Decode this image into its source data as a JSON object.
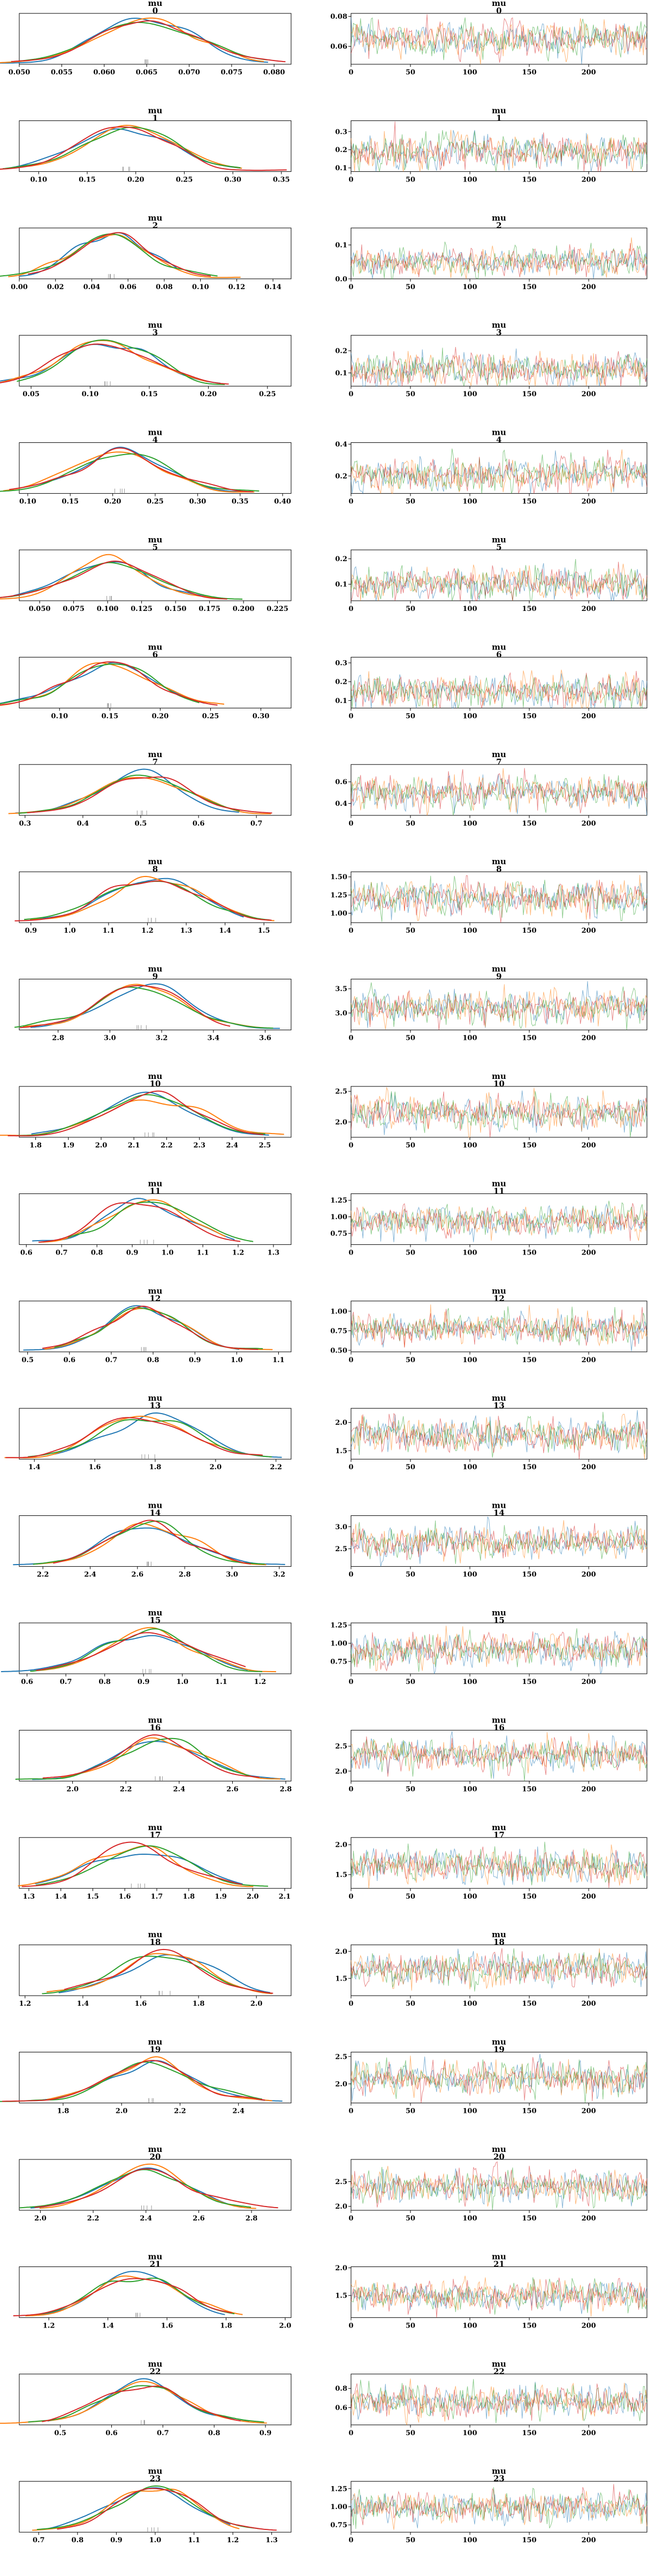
{
  "figure": {
    "type": "trace-plot",
    "chains": 4,
    "colors": [
      "#1f77b4",
      "#ff7f0e",
      "#2ca02c",
      "#d62728"
    ],
    "draws": 250,
    "line_title": "mu"
  },
  "chart_data": [
    {
      "index": "0",
      "title": "mu",
      "label": "0",
      "kde": {
        "xlim": [
          0.05,
          0.082
        ],
        "ticks": [
          "0.050",
          "0.055",
          "0.060",
          "0.065",
          "0.070",
          "0.075",
          "0.080"
        ],
        "mean": 0.065,
        "sd": 0.0055
      },
      "trace": {
        "ylim": [
          0.048,
          0.082
        ],
        "ticks": [
          "0.06",
          "0.08"
        ],
        "mean": 0.065,
        "sd": 0.0055
      }
    },
    {
      "index": "1",
      "title": "mu",
      "label": "1",
      "kde": {
        "xlim": [
          0.08,
          0.36
        ],
        "ticks": [
          "0.10",
          "0.15",
          "0.20",
          "0.25",
          "0.30",
          "0.35"
        ],
        "mean": 0.19,
        "sd": 0.045
      },
      "trace": {
        "ylim": [
          0.08,
          0.36
        ],
        "ticks": [
          "0.1",
          "0.2",
          "0.3"
        ],
        "mean": 0.19,
        "sd": 0.045
      }
    },
    {
      "index": "2",
      "title": "mu",
      "label": "2",
      "kde": {
        "xlim": [
          0.0,
          0.15
        ],
        "ticks": [
          "0.00",
          "0.02",
          "0.04",
          "0.06",
          "0.08",
          "0.10",
          "0.12",
          "0.14"
        ],
        "mean": 0.052,
        "sd": 0.02
      },
      "trace": {
        "ylim": [
          0.0,
          0.15
        ],
        "ticks": [
          "0.0",
          "0.1"
        ],
        "mean": 0.052,
        "sd": 0.02
      }
    },
    {
      "index": "3",
      "title": "mu",
      "label": "3",
      "kde": {
        "xlim": [
          0.04,
          0.27
        ],
        "ticks": [
          "0.05",
          "0.10",
          "0.15",
          "0.20",
          "0.25"
        ],
        "mean": 0.115,
        "sd": 0.035
      },
      "trace": {
        "ylim": [
          0.04,
          0.27
        ],
        "ticks": [
          "0.1",
          "0.2"
        ],
        "mean": 0.115,
        "sd": 0.035
      }
    },
    {
      "index": "4",
      "title": "mu",
      "label": "4",
      "kde": {
        "xlim": [
          0.09,
          0.41
        ],
        "ticks": [
          "0.10",
          "0.15",
          "0.20",
          "0.25",
          "0.30",
          "0.35",
          "0.40"
        ],
        "mean": 0.21,
        "sd": 0.05
      },
      "trace": {
        "ylim": [
          0.09,
          0.41
        ],
        "ticks": [
          "0.2",
          "0.4"
        ],
        "mean": 0.21,
        "sd": 0.05
      }
    },
    {
      "index": "5",
      "title": "mu",
      "label": "5",
      "kde": {
        "xlim": [
          0.035,
          0.235
        ],
        "ticks": [
          "0.050",
          "0.075",
          "0.100",
          "0.125",
          "0.150",
          "0.175",
          "0.200",
          "0.225"
        ],
        "mean": 0.1,
        "sd": 0.03
      },
      "trace": {
        "ylim": [
          0.035,
          0.235
        ],
        "ticks": [
          "0.1",
          "0.2"
        ],
        "mean": 0.1,
        "sd": 0.03
      }
    },
    {
      "index": "6",
      "title": "mu",
      "label": "6",
      "kde": {
        "xlim": [
          0.06,
          0.33
        ],
        "ticks": [
          "0.10",
          "0.15",
          "0.20",
          "0.25",
          "0.30"
        ],
        "mean": 0.15,
        "sd": 0.04
      },
      "trace": {
        "ylim": [
          0.06,
          0.33
        ],
        "ticks": [
          "0.1",
          "0.2",
          "0.3"
        ],
        "mean": 0.15,
        "sd": 0.04
      }
    },
    {
      "index": "7",
      "title": "mu",
      "label": "7",
      "kde": {
        "xlim": [
          0.29,
          0.76
        ],
        "ticks": [
          "0.3",
          "0.4",
          "0.5",
          "0.6",
          "0.7"
        ],
        "mean": 0.5,
        "sd": 0.07
      },
      "trace": {
        "ylim": [
          0.29,
          0.76
        ],
        "ticks": [
          "0.4",
          "0.6"
        ],
        "mean": 0.5,
        "sd": 0.07
      }
    },
    {
      "index": "8",
      "title": "mu",
      "label": "8",
      "kde": {
        "xlim": [
          0.87,
          1.57
        ],
        "ticks": [
          "0.9",
          "1.0",
          "1.1",
          "1.2",
          "1.3",
          "1.4",
          "1.5"
        ],
        "mean": 1.22,
        "sd": 0.11
      },
      "trace": {
        "ylim": [
          0.87,
          1.57
        ],
        "ticks": [
          "1.00",
          "1.25",
          "1.50"
        ],
        "mean": 1.22,
        "sd": 0.11
      }
    },
    {
      "index": "9",
      "title": "mu",
      "label": "9",
      "kde": {
        "xlim": [
          2.65,
          3.7
        ],
        "ticks": [
          "2.8",
          "3.0",
          "3.2",
          "3.4",
          "3.6"
        ],
        "mean": 3.12,
        "sd": 0.16
      },
      "trace": {
        "ylim": [
          2.65,
          3.7
        ],
        "ticks": [
          "3.0",
          "3.5"
        ],
        "mean": 3.12,
        "sd": 0.16
      }
    },
    {
      "index": "10",
      "title": "mu",
      "label": "10",
      "kde": {
        "xlim": [
          1.75,
          2.58
        ],
        "ticks": [
          "1.8",
          "1.9",
          "2.0",
          "2.1",
          "2.2",
          "2.3",
          "2.4",
          "2.5"
        ],
        "mean": 2.15,
        "sd": 0.13
      },
      "trace": {
        "ylim": [
          1.75,
          2.58
        ],
        "ticks": [
          "2.0",
          "2.5"
        ],
        "mean": 2.15,
        "sd": 0.13
      }
    },
    {
      "index": "11",
      "title": "mu",
      "label": "11",
      "kde": {
        "xlim": [
          0.58,
          1.35
        ],
        "ticks": [
          "0.6",
          "0.7",
          "0.8",
          "0.9",
          "1.0",
          "1.1",
          "1.2",
          "1.3"
        ],
        "mean": 0.94,
        "sd": 0.11
      },
      "trace": {
        "ylim": [
          0.58,
          1.35
        ],
        "ticks": [
          "0.75",
          "1.00",
          "1.25"
        ],
        "mean": 0.94,
        "sd": 0.11
      }
    },
    {
      "index": "12",
      "title": "mu",
      "label": "12",
      "kde": {
        "xlim": [
          0.48,
          1.13
        ],
        "ticks": [
          "0.5",
          "0.6",
          "0.7",
          "0.8",
          "0.9",
          "1.0",
          "1.1"
        ],
        "mean": 0.78,
        "sd": 0.09
      },
      "trace": {
        "ylim": [
          0.48,
          1.13
        ],
        "ticks": [
          "0.50",
          "0.75",
          "1.00"
        ],
        "mean": 0.78,
        "sd": 0.09
      }
    },
    {
      "index": "13",
      "title": "mu",
      "label": "13",
      "kde": {
        "xlim": [
          1.35,
          2.25
        ],
        "ticks": [
          "1.4",
          "1.6",
          "1.8",
          "2.0",
          "2.2"
        ],
        "mean": 1.77,
        "sd": 0.14
      },
      "trace": {
        "ylim": [
          1.35,
          2.25
        ],
        "ticks": [
          "1.5",
          "2.0"
        ],
        "mean": 1.77,
        "sd": 0.14
      }
    },
    {
      "index": "14",
      "title": "mu",
      "label": "14",
      "kde": {
        "xlim": [
          2.1,
          3.25
        ],
        "ticks": [
          "2.2",
          "2.4",
          "2.6",
          "2.8",
          "3.0",
          "3.2"
        ],
        "mean": 2.66,
        "sd": 0.17
      },
      "trace": {
        "ylim": [
          2.1,
          3.25
        ],
        "ticks": [
          "2.5",
          "3.0"
        ],
        "mean": 2.66,
        "sd": 0.17
      }
    },
    {
      "index": "15",
      "title": "mu",
      "label": "15",
      "kde": {
        "xlim": [
          0.58,
          1.28
        ],
        "ticks": [
          "0.6",
          "0.7",
          "0.8",
          "0.9",
          "1.0",
          "1.1",
          "1.2"
        ],
        "mean": 0.91,
        "sd": 0.11
      },
      "trace": {
        "ylim": [
          0.58,
          1.28
        ],
        "ticks": [
          "0.75",
          "1.00",
          "1.25"
        ],
        "mean": 0.91,
        "sd": 0.11
      }
    },
    {
      "index": "16",
      "title": "mu",
      "label": "16",
      "kde": {
        "xlim": [
          1.8,
          2.82
        ],
        "ticks": [
          "2.0",
          "2.2",
          "2.4",
          "2.6",
          "2.8"
        ],
        "mean": 2.32,
        "sd": 0.15
      },
      "trace": {
        "ylim": [
          1.8,
          2.82
        ],
        "ticks": [
          "2.0",
          "2.5"
        ],
        "mean": 2.32,
        "sd": 0.15
      }
    },
    {
      "index": "17",
      "title": "mu",
      "label": "17",
      "kde": {
        "xlim": [
          1.27,
          2.12
        ],
        "ticks": [
          "1.3",
          "1.4",
          "1.5",
          "1.6",
          "1.7",
          "1.8",
          "1.9",
          "2.0",
          "2.1"
        ],
        "mean": 1.65,
        "sd": 0.13
      },
      "trace": {
        "ylim": [
          1.27,
          2.12
        ],
        "ticks": [
          "1.5",
          "2.0"
        ],
        "mean": 1.65,
        "sd": 0.13
      }
    },
    {
      "index": "18",
      "title": "mu",
      "label": "18",
      "kde": {
        "xlim": [
          1.18,
          2.12
        ],
        "ticks": [
          "1.2",
          "1.4",
          "1.6",
          "1.8",
          "2.0"
        ],
        "mean": 1.68,
        "sd": 0.14
      },
      "trace": {
        "ylim": [
          1.18,
          2.12
        ],
        "ticks": [
          "1.5",
          "2.0"
        ],
        "mean": 1.68,
        "sd": 0.14
      }
    },
    {
      "index": "19",
      "title": "mu",
      "label": "19",
      "kde": {
        "xlim": [
          1.65,
          2.58
        ],
        "ticks": [
          "1.8",
          "2.0",
          "2.2",
          "2.4"
        ],
        "mean": 2.11,
        "sd": 0.14
      },
      "trace": {
        "ylim": [
          1.65,
          2.58
        ],
        "ticks": [
          "2.0",
          "2.5"
        ],
        "mean": 2.11,
        "sd": 0.14
      }
    },
    {
      "index": "20",
      "title": "mu",
      "label": "20",
      "kde": {
        "xlim": [
          1.92,
          2.95
        ],
        "ticks": [
          "2.0",
          "2.2",
          "2.4",
          "2.6",
          "2.8"
        ],
        "mean": 2.4,
        "sd": 0.15
      },
      "trace": {
        "ylim": [
          1.92,
          2.95
        ],
        "ticks": [
          "2.0",
          "2.5"
        ],
        "mean": 2.4,
        "sd": 0.15
      }
    },
    {
      "index": "21",
      "title": "mu",
      "label": "21",
      "kde": {
        "xlim": [
          1.1,
          2.02
        ],
        "ticks": [
          "1.2",
          "1.4",
          "1.6",
          "1.8",
          "2.0"
        ],
        "mean": 1.5,
        "sd": 0.13
      },
      "trace": {
        "ylim": [
          1.1,
          2.02
        ],
        "ticks": [
          "1.5",
          "2.0"
        ],
        "mean": 1.5,
        "sd": 0.13
      }
    },
    {
      "index": "22",
      "title": "mu",
      "label": "22",
      "kde": {
        "xlim": [
          0.42,
          0.95
        ],
        "ticks": [
          "0.5",
          "0.6",
          "0.7",
          "0.8",
          "0.9"
        ],
        "mean": 0.66,
        "sd": 0.08
      },
      "trace": {
        "ylim": [
          0.42,
          0.95
        ],
        "ticks": [
          "0.6",
          "0.8"
        ],
        "mean": 0.66,
        "sd": 0.08
      }
    },
    {
      "index": "23",
      "title": "mu",
      "label": "23",
      "kde": {
        "xlim": [
          0.65,
          1.35
        ],
        "ticks": [
          "0.7",
          "0.8",
          "0.9",
          "1.0",
          "1.1",
          "1.2",
          "1.3"
        ],
        "mean": 1.0,
        "sd": 0.1
      },
      "trace": {
        "ylim": [
          0.65,
          1.35
        ],
        "ticks": [
          "0.75",
          "1.00",
          "1.25"
        ],
        "mean": 1.0,
        "sd": 0.1
      }
    }
  ],
  "trace_x_ticks": [
    "0",
    "50",
    "100",
    "150",
    "200"
  ]
}
